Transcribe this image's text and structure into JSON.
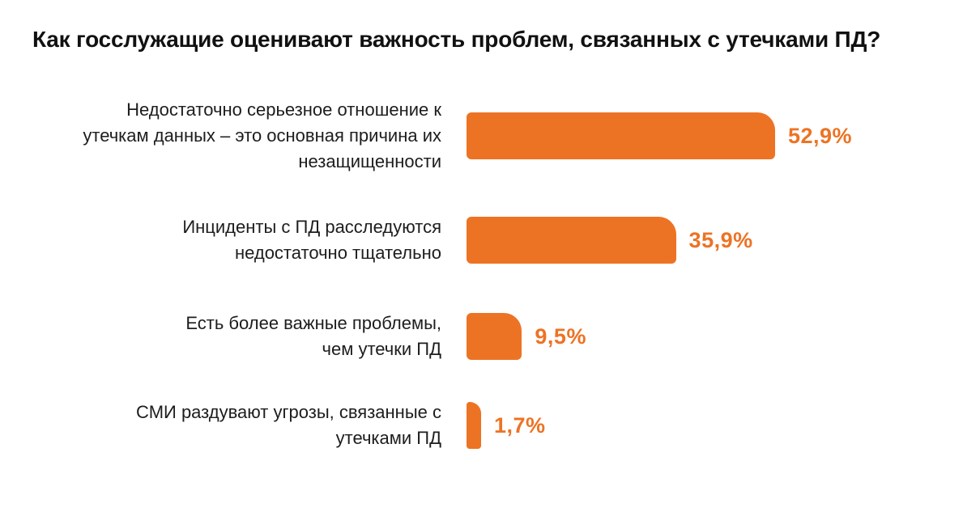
{
  "chart_data": {
    "type": "bar",
    "orientation": "horizontal",
    "title": "Как госслужащие оценивают важность проблем, связанных с утечками ПД?",
    "categories": [
      "Недостаточно серьезное отношение к\nутечкам данных – это основная причина их\nнезащищенности",
      "Инциденты с ПД расследуются\nнедостаточно тщательно",
      "Есть более важные проблемы,\nчем утечки ПД",
      "СМИ раздувают угрозы, связанные с\nутечками ПД"
    ],
    "values": [
      52.9,
      35.9,
      9.5,
      1.7
    ],
    "value_labels": [
      "52,9%",
      "35,9%",
      "9,5%",
      "1,7%"
    ],
    "xlim": [
      0,
      52.9
    ],
    "grid": false,
    "legend": false,
    "bar_color": "#ED7324",
    "value_label_color": "#ED7324",
    "category_label_color": "#1D1D1D",
    "background_color": "#FFFFFF"
  }
}
